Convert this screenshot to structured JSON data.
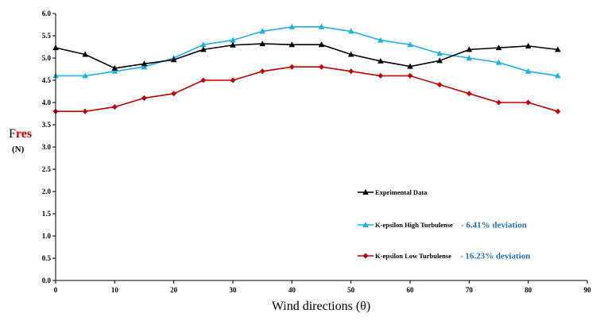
{
  "chart_data": {
    "type": "line",
    "xlabel": "Wind directions (θ)",
    "ylabel_prefix": "F",
    "ylabel_sub": "res",
    "ylabel_unit": "(N)",
    "xlim": [
      0,
      90
    ],
    "ylim": [
      0.0,
      6.0
    ],
    "xticks": [
      0,
      10,
      20,
      30,
      40,
      50,
      60,
      70,
      80,
      90
    ],
    "xtick_labels": [
      "0",
      "10",
      "20",
      "30",
      "40",
      "50",
      "60",
      "70",
      "80",
      "90"
    ],
    "yticks": [
      0.0,
      0.5,
      1.0,
      1.5,
      2.0,
      2.5,
      3.0,
      3.5,
      4.0,
      4.5,
      5.0,
      5.5,
      6.0
    ],
    "ytick_labels": [
      "0.0",
      "0.5",
      "1.0",
      "1.5",
      "2.0",
      "2.5",
      "3.0",
      "3.5",
      "4.0",
      "4.5",
      "5.0",
      "5.5",
      "6.0"
    ],
    "grid": false,
    "legend_position": "center-right",
    "x": [
      0,
      5,
      10,
      15,
      20,
      25,
      30,
      35,
      40,
      45,
      50,
      55,
      60,
      65,
      70,
      75,
      80,
      85
    ],
    "series": [
      {
        "name": "Exprimental Data",
        "deviation": "",
        "color": "#000000",
        "marker": "triangle",
        "values": [
          5.23,
          5.08,
          4.77,
          4.87,
          4.96,
          5.19,
          5.29,
          5.32,
          5.3,
          5.3,
          5.08,
          4.93,
          4.81,
          4.94,
          5.19,
          5.23,
          5.27,
          5.19
        ]
      },
      {
        "name": "K-epsilon High Turbulense",
        "deviation": "-  6.41% deviation",
        "color": "#1fb0e6",
        "marker": "triangle",
        "values": [
          4.6,
          4.6,
          4.7,
          4.8,
          5.0,
          5.3,
          5.4,
          5.6,
          5.7,
          5.7,
          5.6,
          5.4,
          5.3,
          5.1,
          5.0,
          4.9,
          4.7,
          4.6
        ]
      },
      {
        "name": "K-epsilon Low Turbulense",
        "deviation": "-  16.23% deviation",
        "color": "#c00000",
        "marker": "diamond",
        "values": [
          3.8,
          3.8,
          3.9,
          4.1,
          4.2,
          4.5,
          4.5,
          4.7,
          4.8,
          4.8,
          4.7,
          4.6,
          4.6,
          4.4,
          4.2,
          4.0,
          4.0,
          3.8
        ]
      }
    ]
  }
}
